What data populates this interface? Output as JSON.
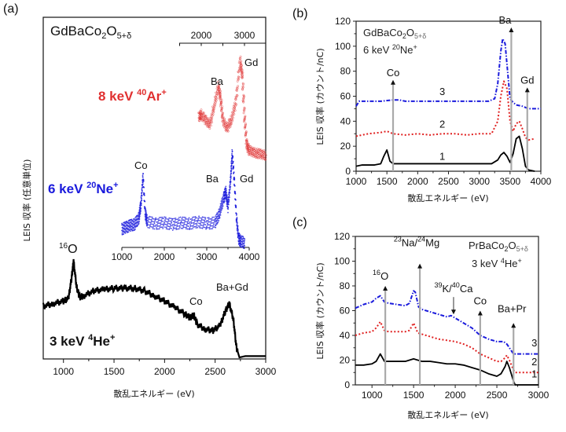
{
  "chart_data": [
    {
      "id": "a",
      "type": "line",
      "panel_label": "(a)",
      "title": "GdBaCo2O5+δ",
      "title_main": "GdBaCo",
      "title_sub1": "2",
      "title_mid": "O",
      "title_sub2": "5+δ",
      "xlabel": "散乱エネルギー (eV)",
      "ylabel": "LEIS 収率 (任意単位)",
      "xlim": [
        800,
        3000
      ],
      "xticks": [
        1000,
        1500,
        2000,
        2500,
        3000
      ],
      "grid": false,
      "series": [
        {
          "name": "3 keV 4He+",
          "label_pre": "3 keV ",
          "label_sup": "4",
          "label_main": "He",
          "label_sup2": "+",
          "color": "#000000",
          "axis": "bottom",
          "x": [
            800,
            900,
            1000,
            1050,
            1080,
            1100,
            1130,
            1160,
            1200,
            1300,
            1400,
            1500,
            1600,
            1700,
            1800,
            1900,
            2000,
            2100,
            2200,
            2250,
            2290,
            2320,
            2400,
            2480,
            2550,
            2600,
            2640,
            2680,
            2710,
            2740,
            2800,
            2900,
            3000
          ],
          "y": [
            0.4,
            0.42,
            0.44,
            0.46,
            0.62,
            0.75,
            0.55,
            0.47,
            0.48,
            0.52,
            0.53,
            0.54,
            0.54,
            0.54,
            0.52,
            0.48,
            0.44,
            0.39,
            0.34,
            0.31,
            0.33,
            0.26,
            0.22,
            0.21,
            0.25,
            0.36,
            0.42,
            0.3,
            0.08,
            0.0,
            0.01,
            0.01,
            0.01
          ]
        },
        {
          "name": "6 keV 20Ne+",
          "label_pre": "6 keV ",
          "label_sup": "20",
          "label_main": "Ne",
          "label_sup2": "+",
          "color": "#1a1adc",
          "axis": "inset",
          "inset_xlim": [
            1000,
            4000
          ],
          "inset_xticks": [
            1000,
            2000,
            3000,
            4000
          ],
          "x": [
            1000,
            1100,
            1200,
            1300,
            1400,
            1450,
            1500,
            1550,
            1600,
            1800,
            2000,
            2200,
            2400,
            2600,
            2800,
            3000,
            3200,
            3300,
            3400,
            3450,
            3500,
            3560,
            3600,
            3650,
            3700,
            3750,
            3800,
            3900
          ],
          "y": [
            0.18,
            0.2,
            0.22,
            0.23,
            0.3,
            0.45,
            0.75,
            0.35,
            0.26,
            0.24,
            0.25,
            0.23,
            0.25,
            0.24,
            0.26,
            0.24,
            0.25,
            0.35,
            0.52,
            0.58,
            0.42,
            0.7,
            1.0,
            0.7,
            0.3,
            0.08,
            0.05,
            0.03
          ]
        },
        {
          "name": "8 keV 40Ar+",
          "label_pre": "8 keV ",
          "label_sup": "40",
          "label_main": "Ar",
          "label_sup2": "+",
          "color": "#e03030",
          "axis": "top",
          "top_xlim": [
            1500,
            3500
          ],
          "top_xticks": [
            2000,
            3000
          ],
          "x": [
            1950,
            2000,
            2100,
            2200,
            2300,
            2400,
            2450,
            2500,
            2600,
            2700,
            2800,
            2900,
            2950,
            3000,
            3050,
            3100,
            3200,
            3300,
            3400,
            3500
          ],
          "y": [
            0.45,
            0.48,
            0.42,
            0.38,
            0.55,
            0.75,
            0.62,
            0.42,
            0.35,
            0.42,
            0.6,
            0.98,
            0.85,
            0.45,
            0.2,
            0.14,
            0.12,
            0.11,
            0.1,
            0.09
          ]
        }
      ],
      "annotations": [
        {
          "text": "Gd",
          "series": "8 keV 40Ar+"
        },
        {
          "text": "Ba",
          "series": "8 keV 40Ar+"
        },
        {
          "text": "Co",
          "series": "6 keV 20Ne+"
        },
        {
          "text": "Ba",
          "series": "6 keV 20Ne+"
        },
        {
          "text": "Gd",
          "series": "6 keV 20Ne+"
        },
        {
          "text": "16O",
          "sup": "16",
          "main": "O",
          "series": "3 keV 4He+"
        },
        {
          "text": "Co",
          "series": "3 keV 4He+"
        },
        {
          "text": "Ba+Gd",
          "series": "3 keV 4He+"
        }
      ]
    },
    {
      "id": "b",
      "type": "line",
      "panel_label": "(b)",
      "title_line1_main": "GdBaCo",
      "title_line1_sub1": "2",
      "title_line1_mid": "O",
      "title_line1_sub2": "5+δ",
      "title_line2_pre": "6 keV ",
      "title_line2_sup": "20",
      "title_line2_main": "Ne",
      "title_line2_sup2": "+",
      "xlabel": "散乱エネルギー (eV)",
      "ylabel": "LEIS 収率 (カウント/nC)",
      "xlim": [
        1000,
        4000
      ],
      "ylim": [
        0,
        120
      ],
      "xticks": [
        1000,
        1500,
        2000,
        2500,
        3000,
        3500,
        4000
      ],
      "yticks": [
        0,
        20,
        40,
        60,
        80,
        100,
        120
      ],
      "grid": false,
      "series": [
        {
          "name": "1",
          "color": "#000000",
          "style": "solid",
          "x": [
            1000,
            1100,
            1200,
            1300,
            1400,
            1450,
            1500,
            1550,
            1600,
            1800,
            2000,
            2200,
            2400,
            2600,
            2800,
            3000,
            3200,
            3300,
            3350,
            3400,
            3450,
            3500,
            3550,
            3600,
            3650,
            3700,
            3750,
            3800,
            3900
          ],
          "y": [
            4,
            5,
            5,
            5,
            6,
            12,
            17,
            8,
            6,
            6,
            6,
            6,
            6,
            6,
            6,
            6,
            6,
            9,
            13,
            15,
            12,
            7,
            14,
            26,
            28,
            18,
            4,
            1,
            0
          ]
        },
        {
          "name": "2",
          "color": "#e02020",
          "style": "dotted",
          "x": [
            1000,
            1200,
            1400,
            1500,
            1600,
            1800,
            2000,
            2200,
            2400,
            2600,
            2800,
            3000,
            3200,
            3300,
            3350,
            3400,
            3450,
            3500,
            3550,
            3600,
            3650,
            3700,
            3750,
            3800,
            3900
          ],
          "y": [
            28,
            30,
            31,
            32,
            30,
            29,
            30,
            29,
            30,
            30,
            29,
            30,
            30,
            40,
            60,
            72,
            66,
            40,
            32,
            38,
            40,
            34,
            27,
            25,
            26
          ]
        },
        {
          "name": "3",
          "color": "#1a1adc",
          "style": "dashdot",
          "x": [
            1000,
            1050,
            1100,
            1200,
            1400,
            1600,
            1700,
            1800,
            2000,
            2200,
            2400,
            2600,
            2800,
            3000,
            3150,
            3250,
            3300,
            3350,
            3380,
            3420,
            3460,
            3500,
            3550,
            3600,
            3700,
            3800,
            3900,
            4000
          ],
          "y": [
            52,
            56,
            56,
            56,
            56,
            57,
            57,
            56,
            56,
            56,
            56,
            56,
            56,
            56,
            56,
            58,
            70,
            96,
            106,
            102,
            80,
            58,
            55,
            53,
            52,
            50,
            50,
            50
          ]
        }
      ],
      "series_labels": [
        {
          "text": "1",
          "x": 2400,
          "y": 9
        },
        {
          "text": "2",
          "x": 2400,
          "y": 35
        },
        {
          "text": "3",
          "x": 2400,
          "y": 61
        }
      ],
      "arrows": [
        {
          "label": "Co",
          "x": 1600,
          "ytip": 73
        },
        {
          "label": "Ba",
          "x": 3520,
          "ytip": 115
        },
        {
          "label": "Gd",
          "x": 3780,
          "ytip": 67
        }
      ]
    },
    {
      "id": "c",
      "type": "line",
      "panel_label": "(c)",
      "title_line1_main": "PrBaCo",
      "title_line1_sub1": "2",
      "title_line1_mid": "O",
      "title_line1_sub2": "5+δ",
      "title_line2_pre": "3 keV ",
      "title_line2_sup": "4",
      "title_line2_main": "He",
      "title_line2_sup2": "+",
      "xlabel": "散乱エネルギー (eV)",
      "ylabel": "LEIS 収率 (カウント/nC)",
      "xlim": [
        800,
        3000
      ],
      "ylim": [
        0,
        120
      ],
      "xticks": [
        1000,
        1500,
        2000,
        2500,
        3000
      ],
      "yticks": [
        0,
        20,
        40,
        60,
        80,
        100,
        120
      ],
      "grid": false,
      "series": [
        {
          "name": "1",
          "color": "#000000",
          "style": "solid",
          "x": [
            800,
            900,
            1000,
            1050,
            1100,
            1150,
            1200,
            1300,
            1400,
            1500,
            1550,
            1600,
            1700,
            1800,
            1900,
            2000,
            2100,
            2200,
            2300,
            2400,
            2500,
            2550,
            2600,
            2620,
            2650,
            2700,
            2720,
            2800,
            3000
          ],
          "y": [
            16,
            16,
            17,
            19,
            25,
            19,
            19,
            19,
            19,
            21,
            20,
            19,
            19,
            18,
            17,
            17,
            16,
            14,
            12,
            9,
            7,
            9,
            15,
            19,
            14,
            3,
            0,
            0,
            0
          ]
        },
        {
          "name": "2",
          "color": "#e02020",
          "style": "dotted",
          "x": [
            800,
            900,
            1000,
            1050,
            1100,
            1150,
            1200,
            1300,
            1400,
            1450,
            1500,
            1550,
            1600,
            1700,
            1800,
            1900,
            2000,
            2100,
            2200,
            2300,
            2400,
            2500,
            2550,
            2600,
            2620,
            2650,
            2700,
            2720,
            2800,
            3000
          ],
          "y": [
            40,
            42,
            43,
            46,
            51,
            44,
            43,
            43,
            43,
            44,
            50,
            42,
            41,
            39,
            37,
            36,
            35,
            33,
            30,
            25,
            22,
            19,
            19,
            22,
            24,
            20,
            12,
            10,
            10,
            10
          ]
        },
        {
          "name": "3",
          "color": "#1a1adc",
          "style": "dashdot",
          "x": [
            800,
            900,
            1000,
            1050,
            1100,
            1150,
            1200,
            1300,
            1400,
            1450,
            1500,
            1520,
            1560,
            1600,
            1700,
            1800,
            1900,
            1950,
            2000,
            2100,
            2200,
            2300,
            2400,
            2500,
            2580,
            2620,
            2650,
            2700,
            2720,
            2800,
            3000
          ],
          "y": [
            62,
            65,
            67,
            70,
            72,
            67,
            66,
            65,
            64,
            66,
            76,
            75,
            63,
            61,
            59,
            57,
            55,
            56,
            54,
            50,
            46,
            40,
            37,
            35,
            35,
            33,
            30,
            25,
            25,
            25,
            25
          ]
        }
      ],
      "series_labels": [
        {
          "text": "3",
          "x": 2950,
          "y": 31
        },
        {
          "text": "2",
          "x": 2950,
          "y": 16
        },
        {
          "text": "1",
          "x": 2950,
          "y": 6
        }
      ],
      "arrows": [
        {
          "label": "16O",
          "label_sup": "16",
          "label_main": "O",
          "x": 1160,
          "ytip": 80
        },
        {
          "label": "23Na/24Mg",
          "x": 1575,
          "ytip": 98
        },
        {
          "label": "39K/40Ca",
          "x": 1980,
          "ytip": 57,
          "direction": "down"
        },
        {
          "label": "Co",
          "x": 2300,
          "ytip": 60
        },
        {
          "label": "Ba+Pr",
          "x": 2700,
          "ytip": 50
        }
      ]
    }
  ]
}
